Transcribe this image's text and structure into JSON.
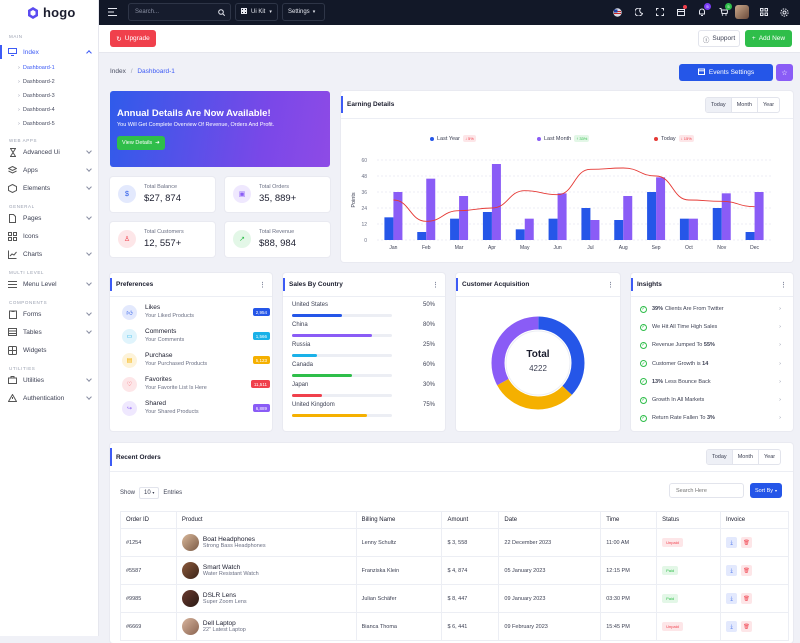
{
  "app": {
    "name": "hogo"
  },
  "topbar": {
    "search_placeholder": "Search...",
    "uikit_label": "Ui Kit",
    "settings_label": "Settings",
    "notifications_badge": "5",
    "cart_badge": "5"
  },
  "actions": {
    "upgrade": "Upgrade",
    "support": "Support",
    "add_new": "Add New"
  },
  "sidebar": {
    "sections": {
      "main": "MAIN",
      "web_apps": "WEB APPS",
      "general": "GENERAL",
      "multi_level": "MULTI LEVEL",
      "components": "COMPONENTS",
      "utilities": "UTILITIES"
    },
    "index": "Index",
    "dashboards": [
      "Dashboard-1",
      "Dashboard-2",
      "Dashboard-3",
      "Dashboard-4",
      "Dashboard-5"
    ],
    "advanced_ui": "Advanced Ui",
    "apps": "Apps",
    "elements": "Elements",
    "pages": "Pages",
    "icons": "Icons",
    "charts": "Charts",
    "menu_level": "Menu Level",
    "forms": "Forms",
    "tables": "Tables",
    "widgets": "Widgets",
    "utilities": "Utilities",
    "authentication": "Authentication"
  },
  "breadcrumb": {
    "root": "Index",
    "current": "Dashboard-1",
    "separator": "/"
  },
  "events_button": "Events Settings",
  "banner": {
    "title": "Annual Details Are Now Available!",
    "subtitle": "You Will Get Complete Overview Of Revenue, Orders And Profit.",
    "button": "View Details"
  },
  "stats": [
    {
      "label": "Total Balance",
      "value": "$27, 874"
    },
    {
      "label": "Total Orders",
      "value": "35, 889+"
    },
    {
      "label": "Total Customers",
      "value": "12, 557+"
    },
    {
      "label": "Total Revenue",
      "value": "$88, 984"
    }
  ],
  "earning": {
    "title": "Earning Details",
    "tabs": [
      "Today",
      "Month",
      "Year"
    ],
    "legend": [
      {
        "name": "Last Year",
        "change": "↓ 5%",
        "color": "#2556e8"
      },
      {
        "name": "Last Month",
        "change": "↑ 33%",
        "color": "#8a5cf6"
      },
      {
        "name": "Today",
        "change": "↓ 15%",
        "color": "#e53935"
      }
    ]
  },
  "chart_data": {
    "type": "bar",
    "categories": [
      "Jan",
      "Feb",
      "Mar",
      "Apr",
      "May",
      "Jun",
      "Jul",
      "Aug",
      "Sep",
      "Oct",
      "Nov",
      "Dec"
    ],
    "series": [
      {
        "name": "Last Year",
        "type": "bar",
        "color": "#2556e8",
        "values": [
          17,
          6,
          16,
          21,
          8,
          16,
          24,
          15,
          36,
          16,
          24,
          6
        ]
      },
      {
        "name": "Last Month",
        "type": "bar",
        "color": "#8a5cf6",
        "values": [
          36,
          46,
          33,
          57,
          16,
          35,
          15,
          33,
          47,
          16,
          35,
          36
        ]
      },
      {
        "name": "Today",
        "type": "line",
        "color": "#e53935",
        "values": [
          30,
          14,
          22,
          24,
          37,
          34,
          53,
          54,
          48,
          30,
          29,
          25
        ]
      }
    ],
    "ylabel": "Points",
    "yticks": [
      0,
      12,
      24,
      36,
      48,
      60
    ],
    "ylim": [
      0,
      60
    ],
    "grid": true
  },
  "preferences": {
    "title": "Preferences",
    "items": [
      {
        "title": "Likes",
        "sub": "Your Liked Products",
        "badge": "2,954",
        "color": "#2556e8"
      },
      {
        "title": "Comments",
        "sub": "Your Comments",
        "badge": "1,566",
        "color": "#1ab1e8"
      },
      {
        "title": "Purchase",
        "sub": "Your Purchased Products",
        "badge": "5,123",
        "color": "#f5b000"
      },
      {
        "title": "Favorites",
        "sub": "Your Favorite List Is Here",
        "badge": "11,511",
        "color": "#f0404c"
      },
      {
        "title": "Shared",
        "sub": "Your Shared Products",
        "badge": "6,889",
        "color": "#8a5cf6"
      }
    ]
  },
  "countries": {
    "title": "Sales By Country",
    "items": [
      {
        "name": "United States",
        "pct": "50%",
        "value": 0.5,
        "color": "#2556e8"
      },
      {
        "name": "China",
        "pct": "80%",
        "value": 0.8,
        "color": "#8a5cf6"
      },
      {
        "name": "Russia",
        "pct": "25%",
        "value": 0.25,
        "color": "#1ab1e8"
      },
      {
        "name": "Canada",
        "pct": "60%",
        "value": 0.6,
        "color": "#2fbe4a"
      },
      {
        "name": "Japan",
        "pct": "30%",
        "value": 0.3,
        "color": "#f0404c"
      },
      {
        "name": "United Kingdom",
        "pct": "75%",
        "value": 0.75,
        "color": "#f5b000"
      }
    ]
  },
  "acquisition": {
    "title": "Customer Acquisition",
    "center_label": "Total",
    "center_value": "4222",
    "segments": [
      {
        "color": "#2556e8",
        "value": 0.37
      },
      {
        "color": "#f5b000",
        "value": 0.3
      },
      {
        "color": "#8a5cf6",
        "value": 0.33
      }
    ]
  },
  "insights": {
    "title": "Insights",
    "items": [
      {
        "bold": "39%",
        "text": "Clients Are From Twitter",
        "tail": ""
      },
      {
        "bold": "",
        "text": "We Hit All Time High Sales",
        "tail": ""
      },
      {
        "bold": "",
        "text": "Revenue Jumped To",
        "tail": "55%"
      },
      {
        "bold": "",
        "text": "Customer Growth is",
        "tail": "14"
      },
      {
        "bold": "13%",
        "text": "Less Bounce Back",
        "tail": ""
      },
      {
        "bold": "",
        "text": "Growth In All Markets",
        "tail": ""
      },
      {
        "bold": "",
        "text": "Return Rate Fallen To",
        "tail": "3%"
      }
    ]
  },
  "orders": {
    "title": "Recent Orders",
    "tabs": [
      "Today",
      "Month",
      "Year"
    ],
    "show_label": "Show",
    "entries_value": "10",
    "entries_label": "Entries",
    "search_placeholder": "Search Here",
    "sort_label": "Sort By",
    "columns": [
      "Order ID",
      "Product",
      "Billing Name",
      "Amount",
      "Date",
      "Time",
      "Status",
      "Invoice"
    ],
    "rows": [
      {
        "id": "#1254",
        "product": "Boat Headphones",
        "sub": "Strong Bass Headphones",
        "billing": "Lenny Schultz",
        "amount": "$ 3, 558",
        "date": "22 December 2023",
        "time": "11:00 AM",
        "status": "Unpaid"
      },
      {
        "id": "#5587",
        "product": "Smart Watch",
        "sub": "Water Resistant Watch",
        "billing": "Franziska Klein",
        "amount": "$ 4, 874",
        "date": "05 January 2023",
        "time": "12:15 PM",
        "status": "Paid"
      },
      {
        "id": "#9985",
        "product": "DSLR Lens",
        "sub": "Super Zoom Lens",
        "billing": "Julian Schäfer",
        "amount": "$ 8, 447",
        "date": "09 January 2023",
        "time": "03:30 PM",
        "status": "Paid"
      },
      {
        "id": "#6669",
        "product": "Dell Laptop",
        "sub": "22\" Latest Laptop",
        "billing": "Bianca Thoma",
        "amount": "$ 6, 441",
        "date": "09 February 2023",
        "time": "15:45 PM",
        "status": "Unpaid"
      }
    ]
  }
}
